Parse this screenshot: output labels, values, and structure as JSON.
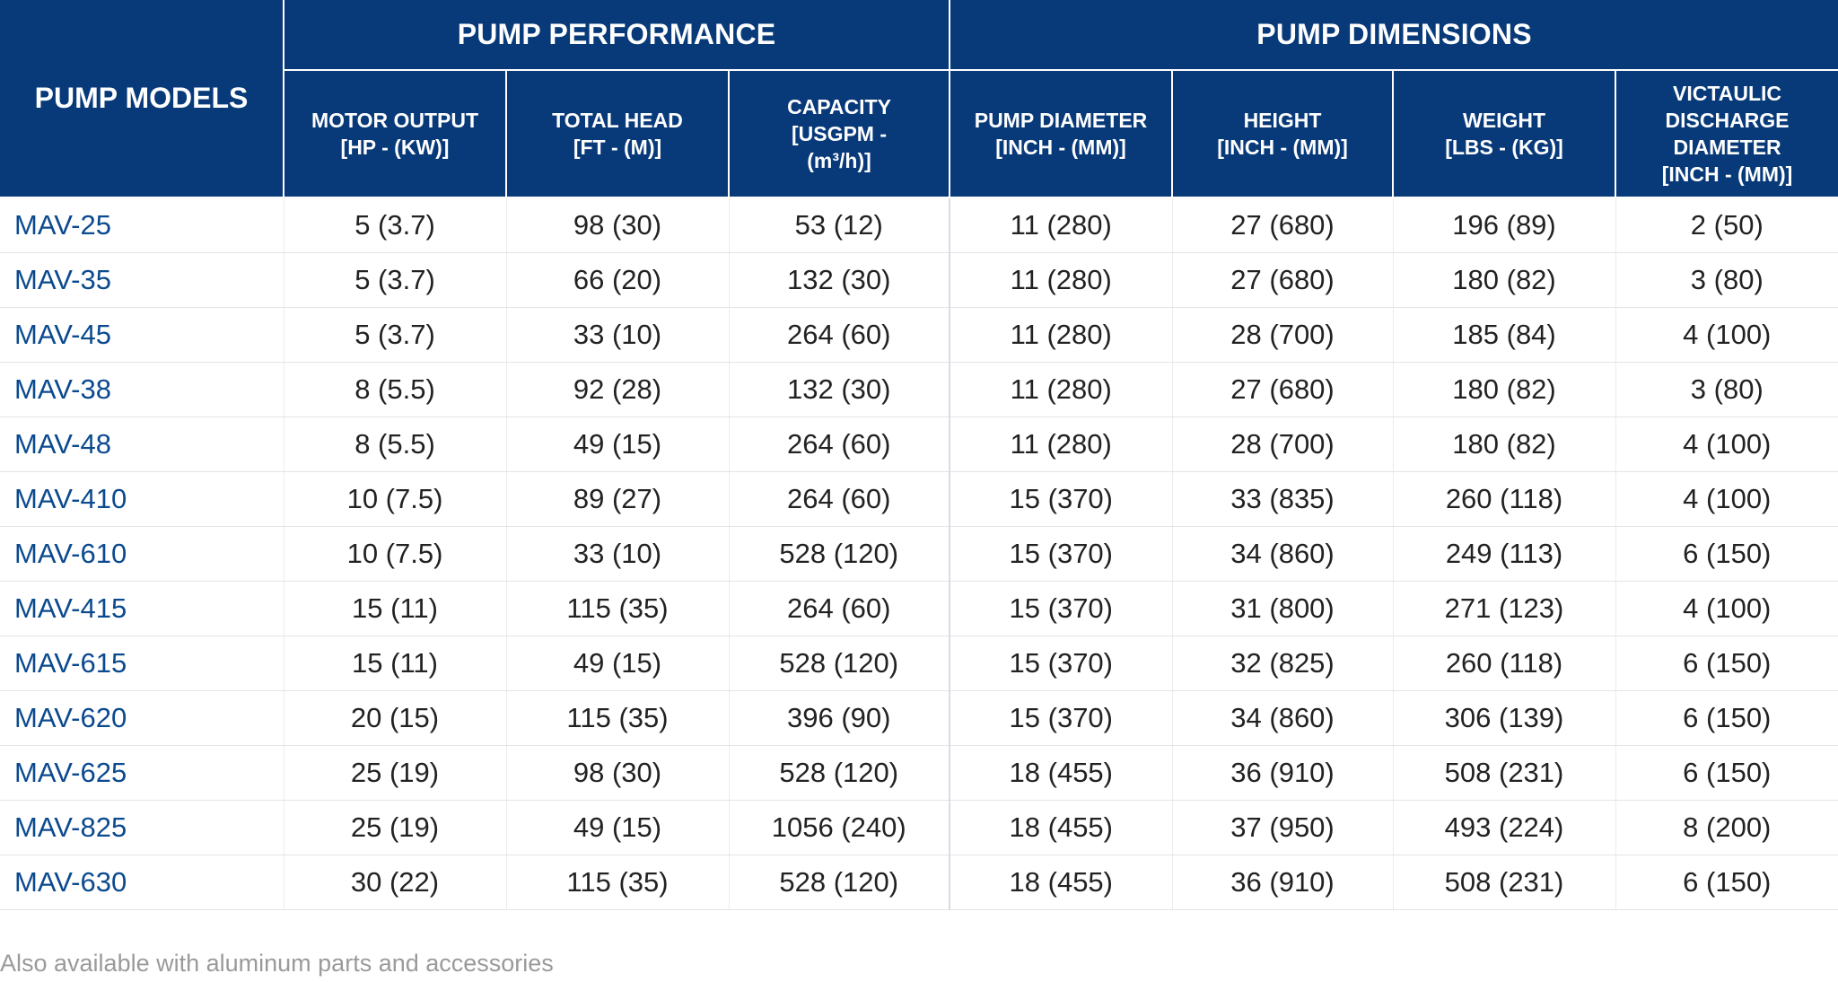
{
  "header": {
    "models_label": "PUMP MODELS",
    "group_performance": "PUMP PERFORMANCE",
    "group_dimensions": "PUMP DIMENSIONS",
    "columns": [
      {
        "line1": "MOTOR OUTPUT",
        "line2": "[HP - (KW)]",
        "line3": "",
        "line4": ""
      },
      {
        "line1": "TOTAL HEAD",
        "line2": "[FT - (M)]",
        "line3": "",
        "line4": ""
      },
      {
        "line1": "CAPACITY",
        "line2": "[USGPM -",
        "line3": "(m³/h)]",
        "line4": ""
      },
      {
        "line1": "PUMP DIAMETER",
        "line2": "[INCH - (MM)]",
        "line3": "",
        "line4": ""
      },
      {
        "line1": "HEIGHT",
        "line2": "[INCH - (MM)]",
        "line3": "",
        "line4": ""
      },
      {
        "line1": "WEIGHT",
        "line2": "[LBS - (KG)]",
        "line3": "",
        "line4": ""
      },
      {
        "line1": "VICTAULIC",
        "line2": "DISCHARGE",
        "line3": "DIAMETER",
        "line4": "[INCH - (MM)]"
      }
    ]
  },
  "rows": [
    {
      "model": "MAV-25",
      "values": [
        "5 (3.7)",
        "98 (30)",
        "53 (12)",
        "11 (280)",
        "27 (680)",
        "196 (89)",
        "2 (50)"
      ]
    },
    {
      "model": "MAV-35",
      "values": [
        "5 (3.7)",
        "66 (20)",
        "132 (30)",
        "11 (280)",
        "27 (680)",
        "180 (82)",
        "3 (80)"
      ]
    },
    {
      "model": "MAV-45",
      "values": [
        "5 (3.7)",
        "33 (10)",
        "264 (60)",
        "11 (280)",
        "28 (700)",
        "185 (84)",
        "4 (100)"
      ]
    },
    {
      "model": "MAV-38",
      "values": [
        "8 (5.5)",
        "92 (28)",
        "132 (30)",
        "11 (280)",
        "27 (680)",
        "180 (82)",
        "3 (80)"
      ]
    },
    {
      "model": "MAV-48",
      "values": [
        "8 (5.5)",
        "49 (15)",
        "264 (60)",
        "11 (280)",
        "28 (700)",
        "180 (82)",
        "4 (100)"
      ]
    },
    {
      "model": "MAV-410",
      "values": [
        "10 (7.5)",
        "89 (27)",
        "264 (60)",
        "15 (370)",
        "33 (835)",
        "260 (118)",
        "4 (100)"
      ]
    },
    {
      "model": "MAV-610",
      "values": [
        "10 (7.5)",
        "33 (10)",
        "528 (120)",
        "15 (370)",
        "34 (860)",
        "249 (113)",
        "6 (150)"
      ]
    },
    {
      "model": "MAV-415",
      "values": [
        "15 (11)",
        "115 (35)",
        "264 (60)",
        "15 (370)",
        "31 (800)",
        "271 (123)",
        "4 (100)"
      ]
    },
    {
      "model": "MAV-615",
      "values": [
        "15 (11)",
        "49 (15)",
        "528 (120)",
        "15 (370)",
        "32 (825)",
        "260 (118)",
        "6 (150)"
      ]
    },
    {
      "model": "MAV-620",
      "values": [
        "20 (15)",
        "115 (35)",
        "396 (90)",
        "15 (370)",
        "34 (860)",
        "306 (139)",
        "6 (150)"
      ]
    },
    {
      "model": "MAV-625",
      "values": [
        "25 (19)",
        "98 (30)",
        "528 (120)",
        "18 (455)",
        "36 (910)",
        "508 (231)",
        "6 (150)"
      ]
    },
    {
      "model": "MAV-825",
      "values": [
        "25 (19)",
        "49 (15)",
        "1056 (240)",
        "18 (455)",
        "37 (950)",
        "493 (224)",
        "8 (200)"
      ]
    },
    {
      "model": "MAV-630",
      "values": [
        "30 (22)",
        "115 (35)",
        "528 (120)",
        "18 (455)",
        "36 (910)",
        "508 (231)",
        "6 (150)"
      ]
    }
  ],
  "footnote": "Also available with aluminum parts and accessories",
  "colors": {
    "header_bg": "#083a7a",
    "model_text": "#0b4a8f",
    "footnote_text": "#9a9a9a"
  }
}
